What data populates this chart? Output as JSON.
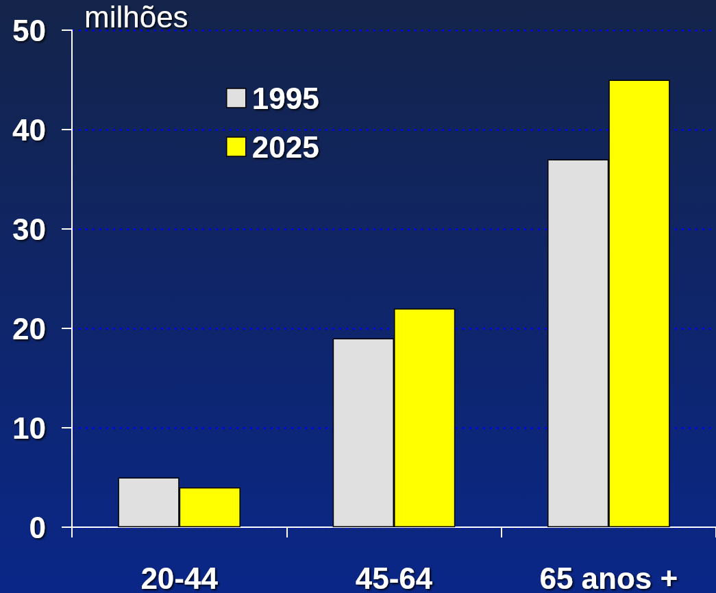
{
  "chart_data": {
    "type": "bar",
    "ylabel": "milhões",
    "categories": [
      "20-44",
      "45-64",
      "65 anos +"
    ],
    "series": [
      {
        "name": "1995",
        "color": "#e0e0e0",
        "values": [
          5,
          19,
          37
        ]
      },
      {
        "name": "2025",
        "color": "#ffff00",
        "values": [
          4,
          22,
          45
        ]
      }
    ],
    "ylim": [
      0,
      50
    ],
    "yticks": [
      0,
      10,
      20,
      30,
      40,
      50
    ],
    "grid": "y",
    "legend": "top left"
  }
}
